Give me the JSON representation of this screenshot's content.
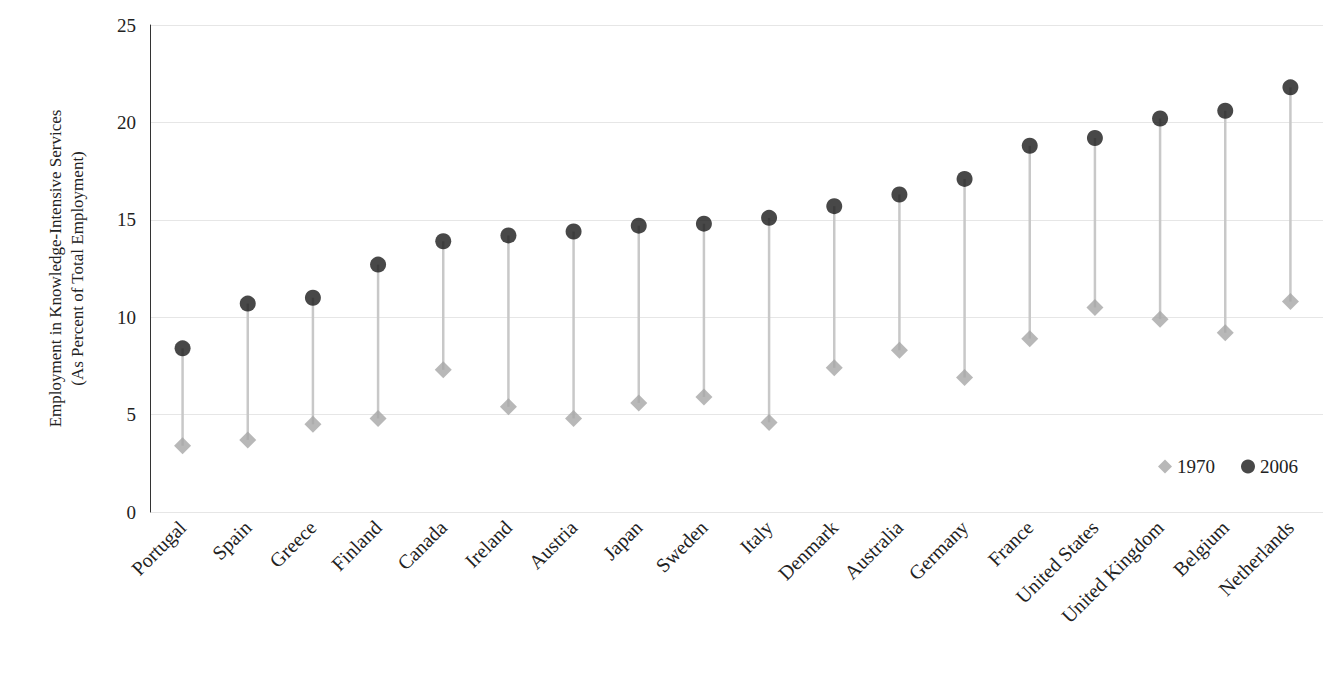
{
  "chart_data": {
    "type": "dumbbell",
    "y_label": "Employment in Knowledge-Intensive Services\n(As Percent of Total Employment)",
    "categories": [
      "Portugal",
      "Spain",
      "Greece",
      "Finland",
      "Canada",
      "Ireland",
      "Austria",
      "Japan",
      "Sweden",
      "Italy",
      "Denmark",
      "Australia",
      "Germany",
      "France",
      "United States",
      "United Kingdom",
      "Belgium",
      "Netherlands"
    ],
    "series": [
      {
        "name": "1970",
        "color": "#a6a6a6",
        "marker": "diamond",
        "values": [
          3.4,
          3.7,
          4.5,
          4.8,
          7.3,
          5.4,
          4.8,
          5.6,
          5.9,
          4.6,
          7.4,
          8.3,
          6.9,
          8.9,
          10.5,
          9.9,
          9.2,
          10.8
        ]
      },
      {
        "name": "2006",
        "color": "#1a1a1a",
        "marker": "circle",
        "values": [
          8.4,
          10.7,
          11.0,
          12.7,
          13.9,
          14.2,
          14.4,
          14.7,
          14.8,
          15.1,
          15.7,
          16.3,
          17.1,
          18.8,
          19.2,
          20.2,
          20.6,
          21.8
        ]
      }
    ],
    "ylim": [
      0,
      25
    ],
    "yticks": [
      0,
      5,
      10,
      15,
      20,
      25
    ],
    "grid": true,
    "legend": "lower right"
  }
}
